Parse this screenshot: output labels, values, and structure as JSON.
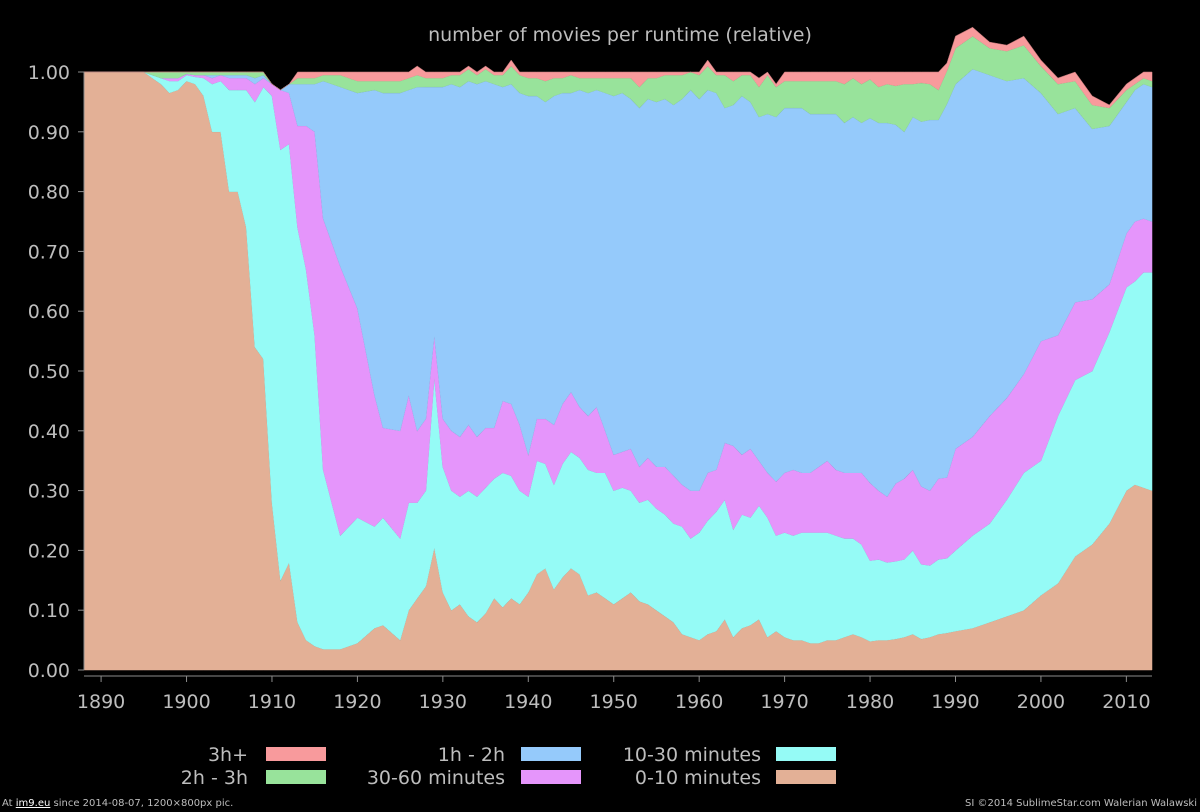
{
  "chart_data": {
    "type": "area",
    "stacked": true,
    "normalized": true,
    "title": "number of movies per runtime (relative)",
    "xlabel": "",
    "ylabel": "",
    "xlim": [
      1888,
      2013
    ],
    "ylim": [
      0,
      1
    ],
    "x_ticks": [
      "1890",
      "1900",
      "1910",
      "1920",
      "1930",
      "1940",
      "1950",
      "1960",
      "1970",
      "1980",
      "1990",
      "2000",
      "2010"
    ],
    "y_ticks": [
      "0.00",
      "0.10",
      "0.20",
      "0.30",
      "0.40",
      "0.50",
      "0.60",
      "0.70",
      "0.80",
      "0.90",
      "1.00"
    ],
    "grid": false,
    "legend_position": "bottom",
    "x": [
      1888,
      1895,
      1897,
      1898,
      1899,
      1900,
      1901,
      1902,
      1903,
      1904,
      1905,
      1906,
      1907,
      1908,
      1909,
      1910,
      1911,
      1912,
      1913,
      1914,
      1915,
      1916,
      1918,
      1920,
      1922,
      1923,
      1925,
      1926,
      1927,
      1928,
      1929,
      1930,
      1931,
      1932,
      1933,
      1934,
      1935,
      1936,
      1937,
      1938,
      1939,
      1940,
      1941,
      1942,
      1943,
      1944,
      1945,
      1946,
      1947,
      1948,
      1949,
      1950,
      1951,
      1952,
      1953,
      1954,
      1955,
      1956,
      1957,
      1958,
      1959,
      1960,
      1961,
      1962,
      1963,
      1964,
      1965,
      1966,
      1967,
      1968,
      1969,
      1970,
      1971,
      1972,
      1973,
      1974,
      1975,
      1976,
      1977,
      1978,
      1979,
      1980,
      1981,
      1982,
      1983,
      1984,
      1985,
      1986,
      1987,
      1988,
      1989,
      1990,
      1992,
      1994,
      1996,
      1998,
      2000,
      2002,
      2004,
      2006,
      2008,
      2010,
      2011,
      2012,
      2013
    ],
    "series": [
      {
        "name": "0-10 minutes",
        "color": "#e3b096",
        "values": [
          1.0,
          1.0,
          0.98,
          0.965,
          0.97,
          0.985,
          0.98,
          0.96,
          0.9,
          0.9,
          0.8,
          0.8,
          0.74,
          0.54,
          0.52,
          0.28,
          0.15,
          0.18,
          0.08,
          0.05,
          0.04,
          0.035,
          0.035,
          0.045,
          0.07,
          0.075,
          0.05,
          0.1,
          0.12,
          0.14,
          0.205,
          0.13,
          0.1,
          0.11,
          0.09,
          0.08,
          0.095,
          0.12,
          0.105,
          0.12,
          0.11,
          0.13,
          0.16,
          0.17,
          0.135,
          0.155,
          0.17,
          0.16,
          0.125,
          0.13,
          0.12,
          0.11,
          0.12,
          0.13,
          0.115,
          0.11,
          0.1,
          0.09,
          0.08,
          0.06,
          0.055,
          0.05,
          0.06,
          0.065,
          0.085,
          0.055,
          0.07,
          0.075,
          0.085,
          0.055,
          0.065,
          0.055,
          0.05,
          0.05,
          0.045,
          0.045,
          0.05,
          0.05,
          0.055,
          0.06,
          0.055,
          0.048,
          0.05,
          0.05,
          0.052,
          0.055,
          0.06,
          0.052,
          0.055,
          0.06,
          0.062,
          0.065,
          0.07,
          0.08,
          0.09,
          0.1,
          0.125,
          0.145,
          0.19,
          0.21,
          0.245,
          0.3,
          0.31,
          0.305,
          0.3
        ]
      },
      {
        "name": "10-30 minutes",
        "color": "#95fbf6",
        "values": [
          0.0,
          0.0,
          0.01,
          0.02,
          0.015,
          0.01,
          0.012,
          0.03,
          0.08,
          0.085,
          0.17,
          0.17,
          0.23,
          0.41,
          0.455,
          0.68,
          0.72,
          0.7,
          0.66,
          0.62,
          0.52,
          0.3,
          0.19,
          0.21,
          0.17,
          0.18,
          0.17,
          0.18,
          0.16,
          0.16,
          0.285,
          0.21,
          0.2,
          0.18,
          0.21,
          0.21,
          0.21,
          0.2,
          0.225,
          0.205,
          0.19,
          0.16,
          0.19,
          0.175,
          0.175,
          0.19,
          0.195,
          0.195,
          0.21,
          0.2,
          0.21,
          0.19,
          0.185,
          0.17,
          0.165,
          0.175,
          0.17,
          0.17,
          0.165,
          0.18,
          0.165,
          0.18,
          0.19,
          0.2,
          0.2,
          0.18,
          0.19,
          0.18,
          0.19,
          0.2,
          0.16,
          0.175,
          0.175,
          0.18,
          0.185,
          0.185,
          0.18,
          0.175,
          0.165,
          0.16,
          0.155,
          0.135,
          0.135,
          0.13,
          0.13,
          0.13,
          0.14,
          0.125,
          0.12,
          0.125,
          0.125,
          0.135,
          0.155,
          0.165,
          0.195,
          0.23,
          0.225,
          0.28,
          0.295,
          0.29,
          0.32,
          0.34,
          0.34,
          0.36,
          0.365
        ]
      },
      {
        "name": "30-60 minutes",
        "color": "#e595fb",
        "values": [
          0.0,
          0.0,
          0.0,
          0.005,
          0.005,
          0.002,
          0.003,
          0.005,
          0.01,
          0.01,
          0.02,
          0.02,
          0.02,
          0.03,
          0.015,
          0.02,
          0.1,
          0.085,
          0.17,
          0.24,
          0.34,
          0.42,
          0.45,
          0.35,
          0.22,
          0.15,
          0.18,
          0.18,
          0.12,
          0.12,
          0.07,
          0.08,
          0.1,
          0.1,
          0.11,
          0.1,
          0.1,
          0.085,
          0.12,
          0.12,
          0.11,
          0.07,
          0.07,
          0.075,
          0.1,
          0.1,
          0.1,
          0.085,
          0.09,
          0.11,
          0.07,
          0.06,
          0.06,
          0.07,
          0.06,
          0.07,
          0.07,
          0.08,
          0.08,
          0.07,
          0.08,
          0.07,
          0.08,
          0.07,
          0.095,
          0.14,
          0.1,
          0.115,
          0.075,
          0.075,
          0.09,
          0.1,
          0.11,
          0.1,
          0.1,
          0.11,
          0.12,
          0.11,
          0.11,
          0.11,
          0.12,
          0.13,
          0.115,
          0.11,
          0.13,
          0.135,
          0.135,
          0.13,
          0.125,
          0.135,
          0.135,
          0.17,
          0.165,
          0.18,
          0.17,
          0.165,
          0.2,
          0.135,
          0.13,
          0.12,
          0.08,
          0.09,
          0.1,
          0.09,
          0.085
        ]
      },
      {
        "name": "1h - 2h",
        "color": "#95cafb",
        "values": [
          0.0,
          0.0,
          0.0,
          0.0,
          0.0,
          0.0,
          0.0,
          0.0,
          0.005,
          0.0,
          0.005,
          0.005,
          0.005,
          0.01,
          0.005,
          0.0,
          0.0,
          0.015,
          0.07,
          0.07,
          0.08,
          0.23,
          0.3,
          0.36,
          0.51,
          0.56,
          0.565,
          0.51,
          0.575,
          0.555,
          0.415,
          0.555,
          0.58,
          0.585,
          0.575,
          0.59,
          0.58,
          0.575,
          0.525,
          0.535,
          0.555,
          0.6,
          0.54,
          0.53,
          0.55,
          0.52,
          0.5,
          0.53,
          0.54,
          0.53,
          0.565,
          0.6,
          0.6,
          0.585,
          0.6,
          0.6,
          0.61,
          0.615,
          0.62,
          0.645,
          0.67,
          0.655,
          0.64,
          0.63,
          0.56,
          0.57,
          0.6,
          0.58,
          0.575,
          0.6,
          0.61,
          0.61,
          0.605,
          0.61,
          0.6,
          0.59,
          0.58,
          0.595,
          0.585,
          0.595,
          0.585,
          0.61,
          0.615,
          0.625,
          0.6,
          0.58,
          0.59,
          0.61,
          0.62,
          0.6,
          0.625,
          0.61,
          0.615,
          0.57,
          0.53,
          0.495,
          0.415,
          0.37,
          0.325,
          0.285,
          0.265,
          0.22,
          0.22,
          0.225,
          0.225
        ]
      },
      {
        "name": "2h - 3h",
        "color": "#98e39b",
        "values": [
          0.0,
          0.0,
          0.01,
          0.01,
          0.01,
          0.003,
          0.005,
          0.005,
          0.005,
          0.005,
          0.005,
          0.005,
          0.005,
          0.01,
          0.005,
          0.0,
          0.0,
          0.0,
          0.01,
          0.01,
          0.01,
          0.01,
          0.02,
          0.02,
          0.015,
          0.02,
          0.02,
          0.02,
          0.02,
          0.015,
          0.015,
          0.015,
          0.015,
          0.02,
          0.02,
          0.015,
          0.02,
          0.015,
          0.02,
          0.03,
          0.03,
          0.03,
          0.03,
          0.035,
          0.03,
          0.025,
          0.03,
          0.02,
          0.025,
          0.02,
          0.025,
          0.03,
          0.025,
          0.035,
          0.035,
          0.035,
          0.04,
          0.04,
          0.05,
          0.04,
          0.03,
          0.04,
          0.04,
          0.03,
          0.055,
          0.04,
          0.035,
          0.045,
          0.05,
          0.065,
          0.05,
          0.045,
          0.045,
          0.045,
          0.055,
          0.055,
          0.055,
          0.055,
          0.065,
          0.065,
          0.065,
          0.065,
          0.06,
          0.065,
          0.065,
          0.08,
          0.055,
          0.065,
          0.06,
          0.05,
          0.055,
          0.06,
          0.055,
          0.045,
          0.05,
          0.055,
          0.045,
          0.05,
          0.045,
          0.04,
          0.03,
          0.02,
          0.01,
          0.01,
          0.01
        ]
      },
      {
        "name": "3h+",
        "color": "#f89a9c",
        "values": [
          0.0,
          0.0,
          0.0,
          0.0,
          0.0,
          0.0,
          0.0,
          0.0,
          0.0,
          0.0,
          0.0,
          0.0,
          0.0,
          0.0,
          0.0,
          0.0,
          0.0,
          0.0,
          0.01,
          0.01,
          0.01,
          0.005,
          0.005,
          0.015,
          0.015,
          0.015,
          0.015,
          0.01,
          0.015,
          0.01,
          0.01,
          0.01,
          0.005,
          0.005,
          0.005,
          0.005,
          0.005,
          0.005,
          0.005,
          0.01,
          0.005,
          0.01,
          0.01,
          0.015,
          0.01,
          0.01,
          0.005,
          0.01,
          0.01,
          0.01,
          0.01,
          0.01,
          0.01,
          0.01,
          0.025,
          0.01,
          0.01,
          0.005,
          0.005,
          0.005,
          0.0,
          0.005,
          0.01,
          0.005,
          0.005,
          0.015,
          0.005,
          0.005,
          0.015,
          0.005,
          0.005,
          0.015,
          0.015,
          0.015,
          0.015,
          0.015,
          0.015,
          0.015,
          0.02,
          0.01,
          0.02,
          0.012,
          0.025,
          0.02,
          0.023,
          0.02,
          0.02,
          0.018,
          0.02,
          0.03,
          0.013,
          0.02,
          0.015,
          0.01,
          0.01,
          0.015,
          0.01,
          0.01,
          0.015,
          0.015,
          0.005,
          0.01,
          0.01,
          0.01,
          0.015
        ]
      }
    ],
    "legend": [
      {
        "label": "3h+",
        "color": "#f89a9c"
      },
      {
        "label": "2h - 3h",
        "color": "#98e39b"
      },
      {
        "label": "1h - 2h",
        "color": "#95cafb"
      },
      {
        "label": "30-60 minutes",
        "color": "#e595fb"
      },
      {
        "label": "10-30 minutes",
        "color": "#95fbf6"
      },
      {
        "label": "0-10 minutes",
        "color": "#e3b096"
      }
    ]
  },
  "footer": {
    "left_prefix": "At ",
    "left_link": "im9.eu",
    "left_suffix": " since 2014-08-07, 1200×800px pic.",
    "right": "SI ©2014 SublimeStar.com Walerian Walawski"
  },
  "colors": {
    "background": "#000000",
    "text": "#bdbdbd",
    "axis": "#8c8c8c"
  }
}
